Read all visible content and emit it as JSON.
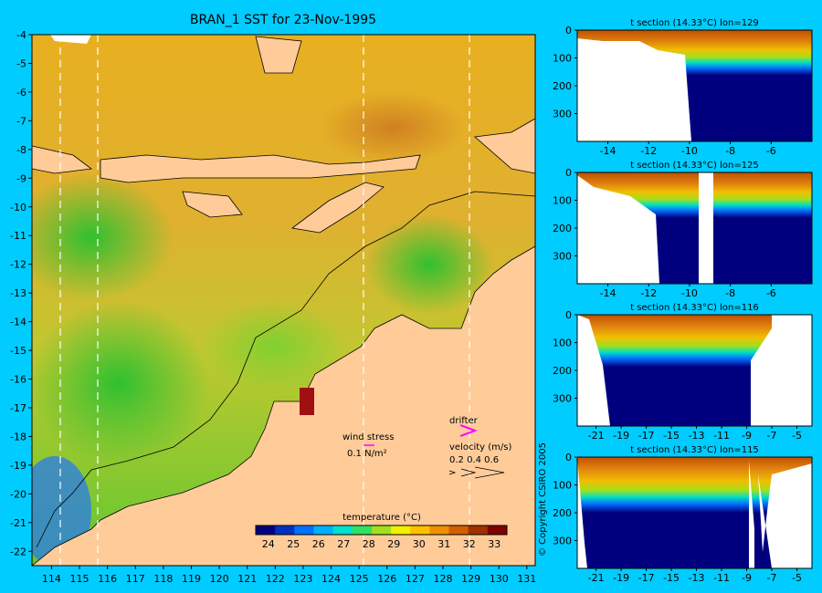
{
  "title": "BRAN_1 SST for 23-Nov-1995",
  "copyright": "© Copyright CSIRO 2005",
  "colors": {
    "background": "#00ccff",
    "land": "#ffcc99",
    "missing": "#ffffff"
  },
  "map": {
    "lon_ticks": [
      "114",
      "115",
      "116",
      "117",
      "118",
      "119",
      "120",
      "121",
      "122",
      "123",
      "124",
      "125",
      "126",
      "127",
      "128",
      "129",
      "130",
      "131"
    ],
    "lat_ticks": [
      "-4",
      "-5",
      "-6",
      "-7",
      "-8",
      "-9",
      "-10",
      "-11",
      "-12",
      "-13",
      "-14",
      "-15",
      "-16",
      "-17",
      "-18",
      "-19",
      "-20",
      "-21",
      "-22"
    ],
    "section_lons": [
      129,
      125,
      116,
      115
    ],
    "wind_label": "wind stress",
    "wind_scale": "0.1 N/m²",
    "drifter_label": "drifter",
    "velocity_label": "velocity (m/s)",
    "velocity_scale": "0.2 0.4 0.6"
  },
  "colorbar": {
    "label": "temperature (°C)",
    "ticks": [
      "24",
      "25",
      "26",
      "27",
      "28",
      "29",
      "30",
      "31",
      "32",
      "33"
    ],
    "colors": [
      "#00007f",
      "#0030c0",
      "#0070ff",
      "#00b0ff",
      "#00e0d0",
      "#30e060",
      "#a0e020",
      "#f0f000",
      "#ffc000",
      "#f09000",
      "#d06000",
      "#a03000",
      "#800000"
    ]
  },
  "chart_data": [
    {
      "type": "heatmap",
      "title": "BRAN_1 SST for 23-Nov-1995",
      "xlabel": "",
      "ylabel": "",
      "xlim": [
        113.3,
        131.3
      ],
      "ylim": [
        -22.5,
        -4
      ],
      "colorbar_label": "temperature (°C)",
      "colorbar_range": [
        23.5,
        33.5
      ]
    },
    {
      "type": "heatmap",
      "title": "t section (14.33°C) lon=129",
      "x_ticks": [
        "-14",
        "-12",
        "-10",
        "-8",
        "-6"
      ],
      "y_ticks": [
        "0",
        "100",
        "200",
        "300"
      ],
      "xlim": [
        -15.5,
        -4.0
      ],
      "ylim": [
        400,
        0
      ],
      "thermocline_depth": 130
    },
    {
      "type": "heatmap",
      "title": "t section (14.33°C) lon=125",
      "x_ticks": [
        "-14",
        "-12",
        "-10",
        "-8",
        "-6"
      ],
      "y_ticks": [
        "0",
        "100",
        "200",
        "300"
      ],
      "xlim": [
        -15.5,
        -4.0
      ],
      "ylim": [
        400,
        0
      ],
      "thermocline_depth": 130
    },
    {
      "type": "heatmap",
      "title": "t section (14.33°C) lon=116",
      "x_ticks": [
        "-21",
        "-19",
        "-17",
        "-15",
        "-13",
        "-11",
        "-9",
        "-7",
        "-5"
      ],
      "y_ticks": [
        "0",
        "100",
        "200",
        "300"
      ],
      "xlim": [
        -22.5,
        -3.8
      ],
      "ylim": [
        400,
        0
      ],
      "thermocline_depth": 150
    },
    {
      "type": "heatmap",
      "title": "t section (14.33°C) lon=115",
      "x_ticks": [
        "-21",
        "-19",
        "-17",
        "-15",
        "-13",
        "-11",
        "-9",
        "-7",
        "-5"
      ],
      "y_ticks": [
        "0",
        "100",
        "200",
        "300"
      ],
      "xlim": [
        -22.5,
        -3.8
      ],
      "ylim": [
        400,
        0
      ],
      "thermocline_depth": 160
    }
  ]
}
